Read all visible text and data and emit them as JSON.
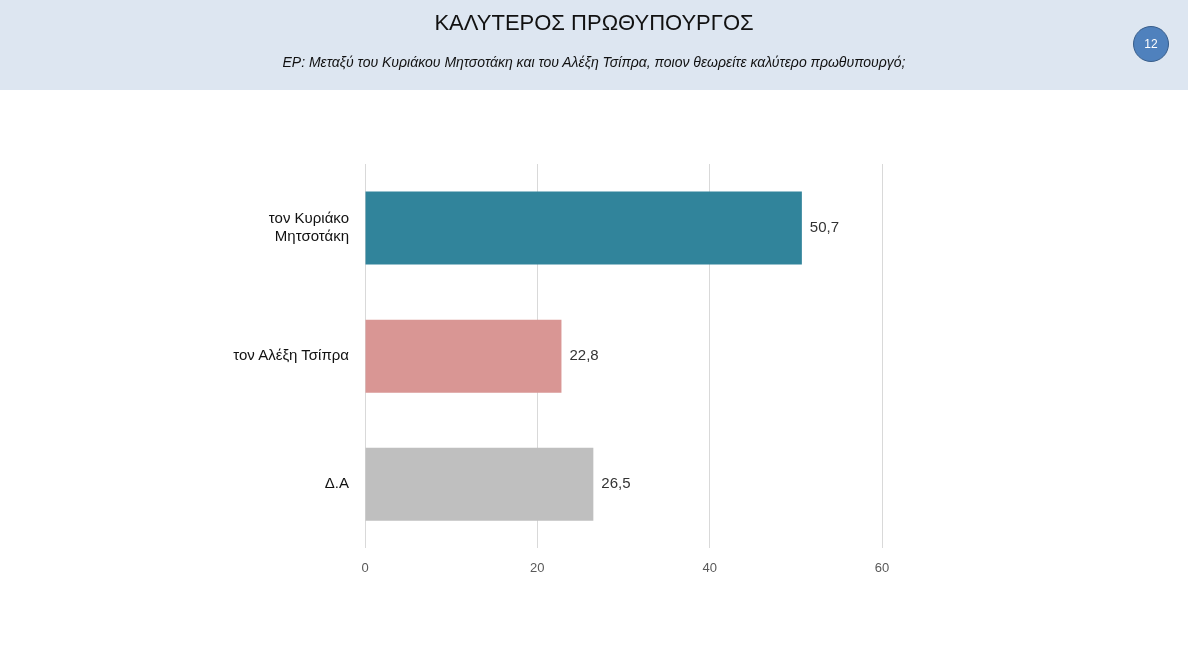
{
  "chart_data": {
    "type": "bar",
    "orientation": "horizontal",
    "title": "ΚΑΛΥΤΕΡΟΣ ΠΡΩΘΥΠΟΥΡΓΟΣ",
    "subtitle": "ΕΡ:  Μεταξύ του Κυριάκου Μητσοτάκη και του Αλέξη Τσίπρα, ποιον θεωρείτε καλύτερο πρωθυπουργό;",
    "categories": [
      "τον Κυριάκο Μητσοτάκη",
      "τον Αλέξη Τσίπρα",
      "Δ.Α"
    ],
    "values": [
      50.7,
      22.8,
      26.5
    ],
    "colors": [
      "#31849b",
      "#d99694",
      "#bfbfbf"
    ],
    "value_labels": [
      "50,7",
      "22,8",
      "26,5"
    ],
    "xlim": [
      0,
      60
    ],
    "xticks": [
      0,
      20,
      40,
      60
    ],
    "grid": "x",
    "legend": false,
    "annotations": [
      "12"
    ]
  }
}
